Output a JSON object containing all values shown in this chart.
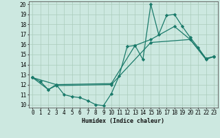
{
  "title": "",
  "xlabel": "Humidex (Indice chaleur)",
  "bg_color": "#cce8e0",
  "line_color": "#1a7a6a",
  "grid_color": "#aaccbb",
  "xlim": [
    -0.5,
    23.5
  ],
  "ylim": [
    9.7,
    20.3
  ],
  "xticks": [
    0,
    1,
    2,
    3,
    4,
    5,
    6,
    7,
    8,
    9,
    10,
    11,
    12,
    13,
    14,
    15,
    16,
    17,
    18,
    19,
    20,
    21,
    22,
    23
  ],
  "yticks": [
    10,
    11,
    12,
    13,
    14,
    15,
    16,
    17,
    18,
    19,
    20
  ],
  "line1_x": [
    0,
    1,
    2,
    3,
    4,
    5,
    6,
    7,
    8,
    9,
    10,
    11,
    12,
    13,
    14,
    15,
    16,
    17,
    18,
    19,
    20,
    21,
    22,
    23
  ],
  "line1_y": [
    12.7,
    12.3,
    11.5,
    12.0,
    11.0,
    10.8,
    10.7,
    10.4,
    10.0,
    9.9,
    11.1,
    12.9,
    15.8,
    15.9,
    14.5,
    20.0,
    17.0,
    18.9,
    19.0,
    17.8,
    16.7,
    15.7,
    14.6,
    14.8
  ],
  "line2_x": [
    0,
    3,
    10,
    13,
    15,
    18,
    20,
    22,
    23
  ],
  "line2_y": [
    12.7,
    12.0,
    12.1,
    15.9,
    16.5,
    17.8,
    16.5,
    14.6,
    14.8
  ],
  "line3_x": [
    0,
    2,
    3,
    10,
    15,
    20,
    22,
    23
  ],
  "line3_y": [
    12.7,
    11.5,
    11.9,
    12.0,
    16.2,
    16.5,
    14.5,
    14.8
  ],
  "marker": "D",
  "marker_size": 2.2,
  "linewidth": 0.9
}
